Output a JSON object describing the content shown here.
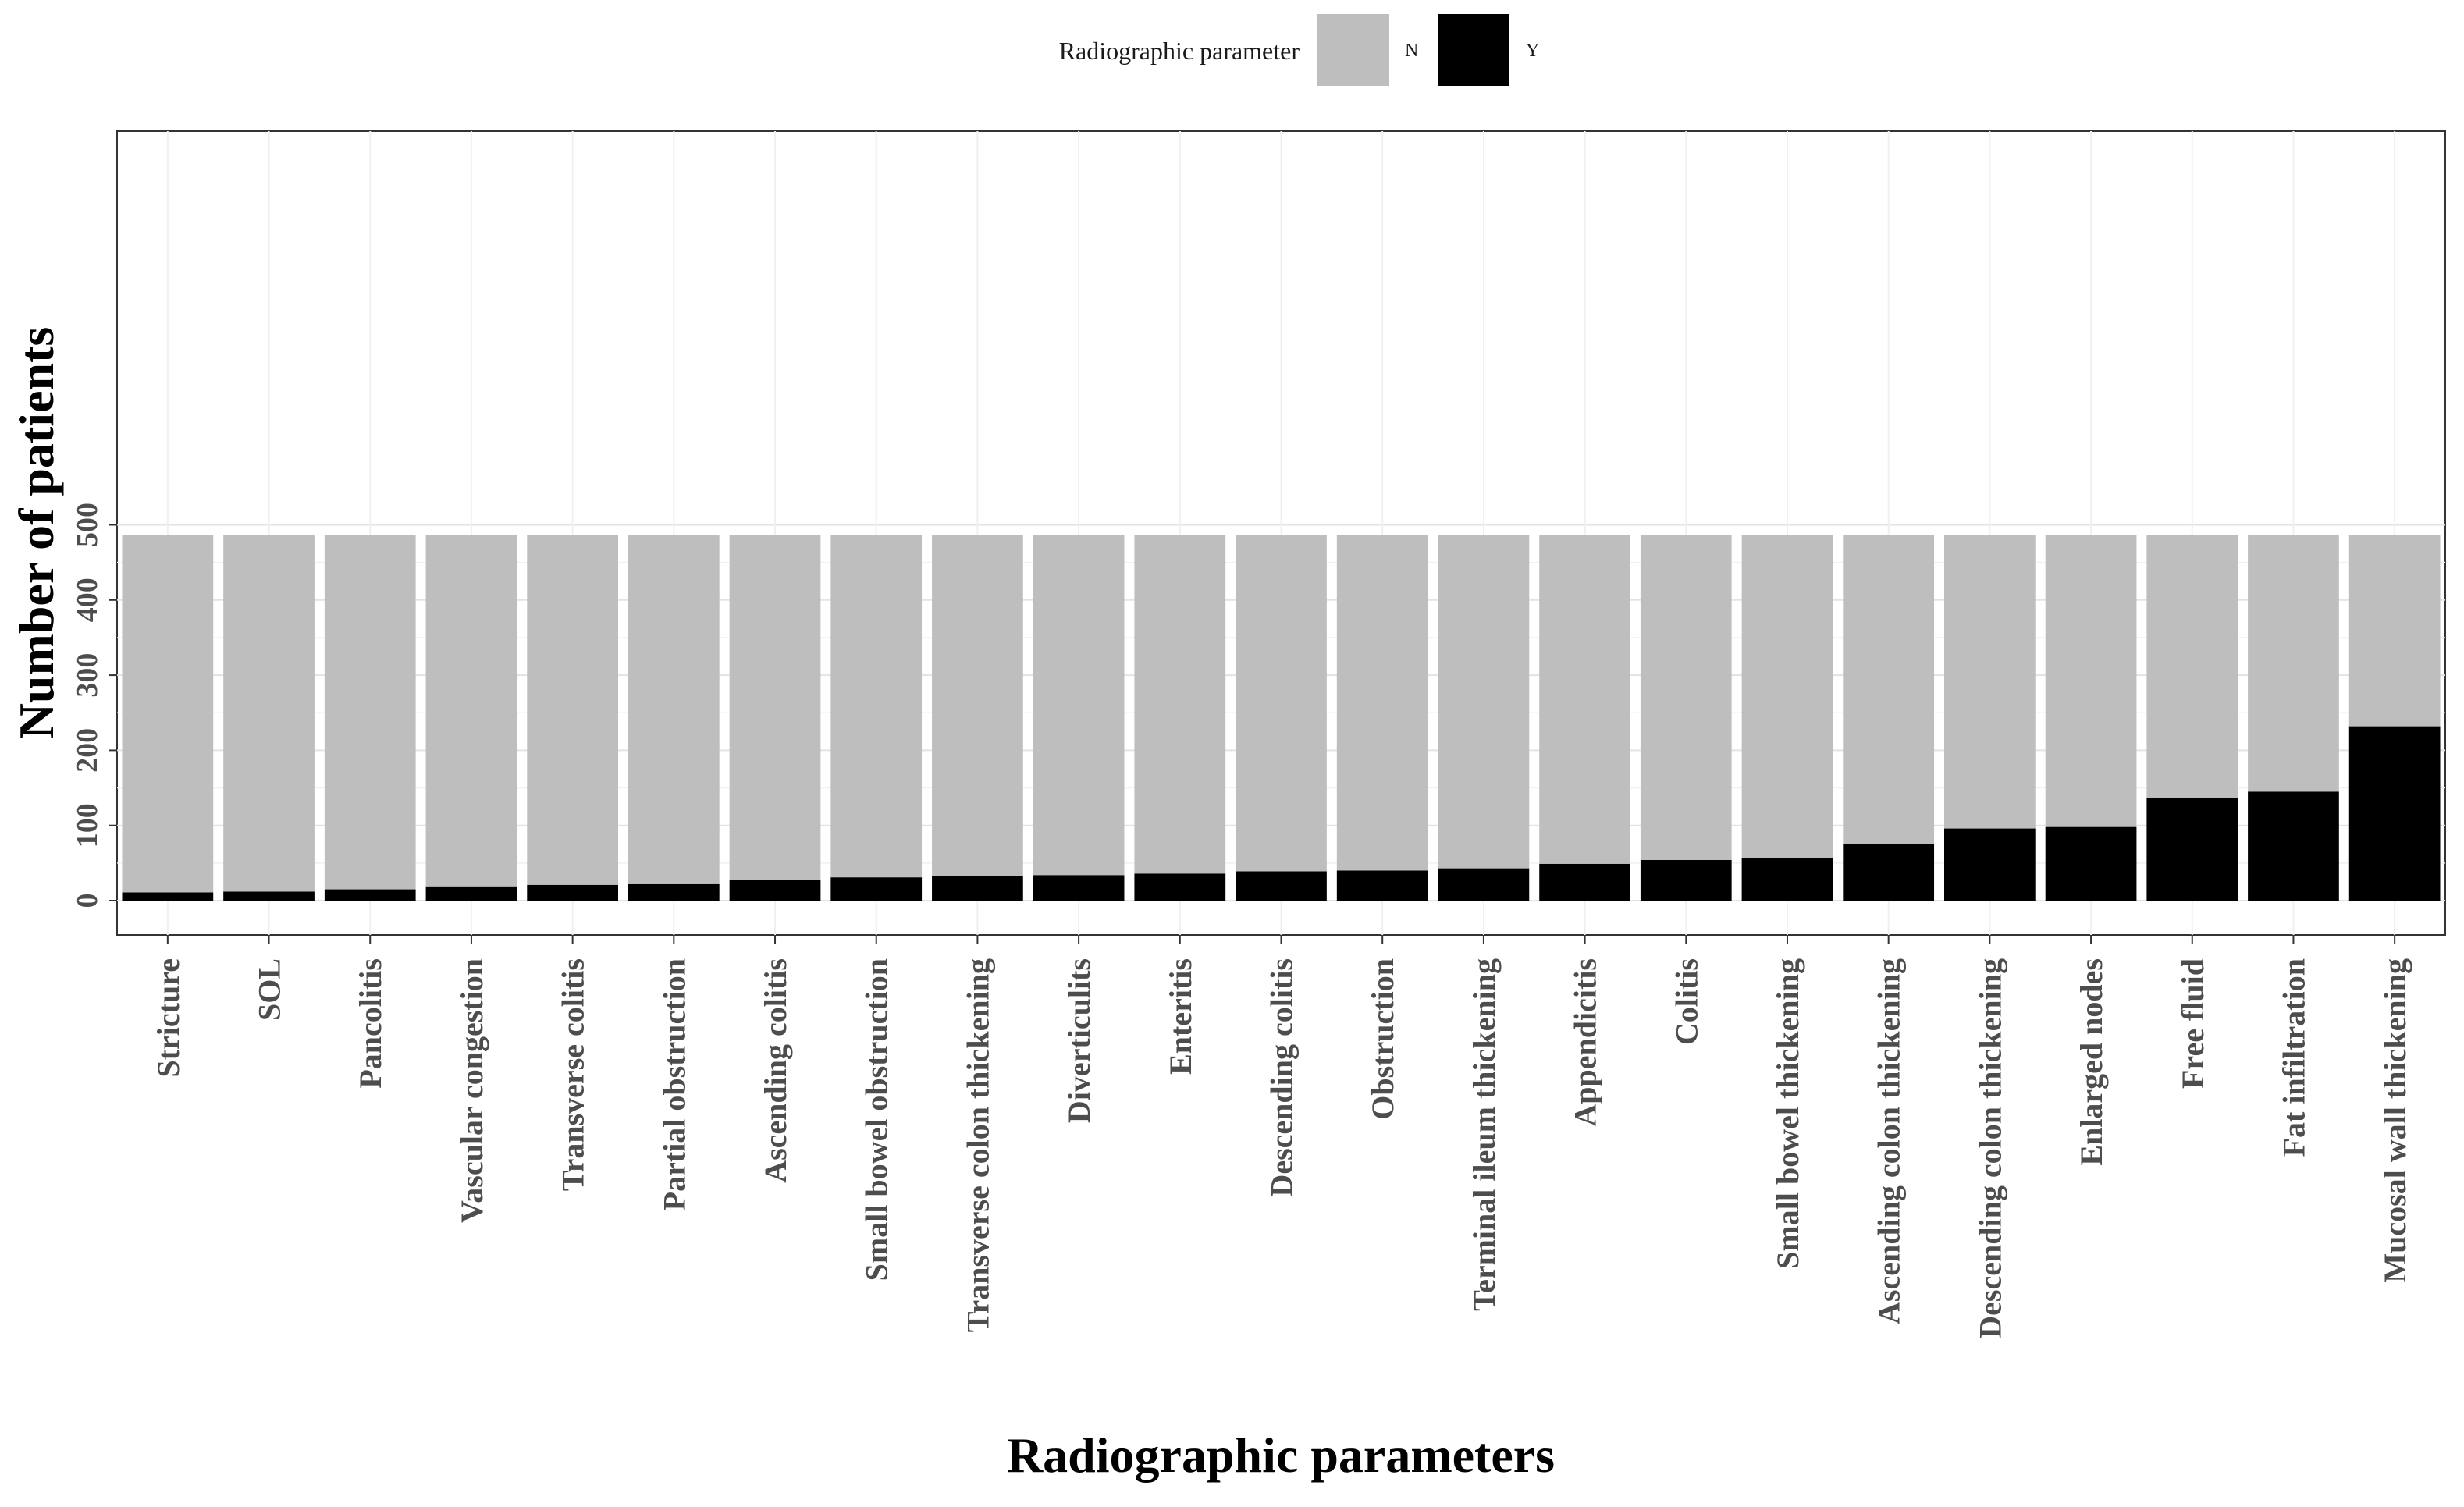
{
  "chart_data": {
    "type": "bar",
    "stacked": true,
    "title": "",
    "xlabel": "Radiographic parameters",
    "ylabel": "Number of patients",
    "ylim": [
      0,
      510
    ],
    "yticks": [
      0,
      100,
      200,
      300,
      400,
      500
    ],
    "grid": true,
    "legend": {
      "title": "Radiographic parameter",
      "position": "top",
      "entries": [
        {
          "name": "N",
          "color": "#bebebe"
        },
        {
          "name": "Y",
          "color": "#000000"
        }
      ]
    },
    "categories": [
      "Stricture",
      "SOL",
      "Pancolitis",
      "Vascular congestion",
      "Transverse colitis",
      "Partial obstruction",
      "Ascending colitis",
      "Small bowel obstruction",
      "Transverse colon thickening",
      "Diverticulits",
      "Enteritis",
      "Descending colitis",
      "Obstruction",
      "Terminal ileum thickening",
      "Appendicitis",
      "Colitis",
      "Small bowel thickening",
      "Ascending colon thickening",
      "Descending colon thickening",
      "Enlarged nodes",
      "Free fluid",
      "Fat infiltration",
      "Mucosal wall thickening"
    ],
    "series": [
      {
        "name": "Y",
        "color": "#000000",
        "values": [
          11,
          12,
          15,
          19,
          21,
          22,
          28,
          31,
          33,
          34,
          36,
          39,
          40,
          43,
          49,
          54,
          57,
          75,
          96,
          98,
          137,
          145,
          232
        ]
      },
      {
        "name": "N",
        "color": "#bebebe",
        "values": [
          476,
          475,
          472,
          468,
          466,
          465,
          459,
          456,
          454,
          453,
          451,
          448,
          447,
          444,
          438,
          433,
          430,
          412,
          391,
          389,
          350,
          342,
          255
        ]
      }
    ]
  }
}
